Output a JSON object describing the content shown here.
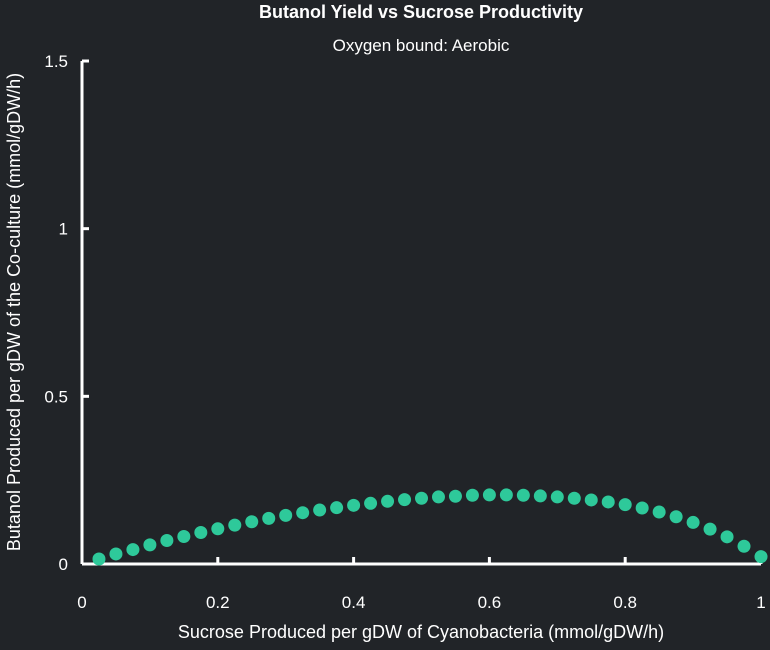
{
  "chart_data": {
    "type": "scatter",
    "title": "Butanol Yield vs Sucrose Productivity",
    "subtitle": "Oxygen bound: Aerobic",
    "xlabel": "Sucrose Produced per gDW of Cyanobacteria (mmol/gDW/h)",
    "ylabel": "Butanol Produced per gDW of the Co-culture (mmol/gDW/h)",
    "xlim": [
      0,
      1
    ],
    "ylim": [
      0,
      1.5
    ],
    "xticks": [
      {
        "value": 0,
        "label": "0"
      },
      {
        "value": 0.2,
        "label": "0.2"
      },
      {
        "value": 0.4,
        "label": "0.4"
      },
      {
        "value": 0.6,
        "label": "0.6"
      },
      {
        "value": 0.8,
        "label": "0.8"
      },
      {
        "value": 1,
        "label": "1"
      }
    ],
    "yticks": [
      {
        "value": 0,
        "label": "0"
      },
      {
        "value": 0.5,
        "label": "0.5"
      },
      {
        "value": 1,
        "label": "1"
      },
      {
        "value": 1.5,
        "label": "1.5"
      }
    ],
    "grid": false,
    "marker_color": "#2ec99a",
    "axis_color": "#ffffff",
    "background": "#212428",
    "x": [
      0.025,
      0.05,
      0.075,
      0.1,
      0.125,
      0.15,
      0.175,
      0.2,
      0.225,
      0.25,
      0.275,
      0.3,
      0.325,
      0.35,
      0.375,
      0.4,
      0.425,
      0.45,
      0.475,
      0.5,
      0.525,
      0.55,
      0.575,
      0.6,
      0.625,
      0.65,
      0.675,
      0.7,
      0.725,
      0.75,
      0.775,
      0.8,
      0.825,
      0.85,
      0.875,
      0.9,
      0.925,
      0.95,
      0.975,
      1.0
    ],
    "y": [
      0.015,
      0.03,
      0.043,
      0.057,
      0.07,
      0.082,
      0.094,
      0.105,
      0.116,
      0.126,
      0.136,
      0.145,
      0.153,
      0.161,
      0.168,
      0.175,
      0.181,
      0.187,
      0.192,
      0.196,
      0.2,
      0.202,
      0.205,
      0.206,
      0.206,
      0.205,
      0.203,
      0.2,
      0.196,
      0.191,
      0.185,
      0.177,
      0.167,
      0.155,
      0.141,
      0.124,
      0.104,
      0.081,
      0.053,
      0.022
    ]
  }
}
